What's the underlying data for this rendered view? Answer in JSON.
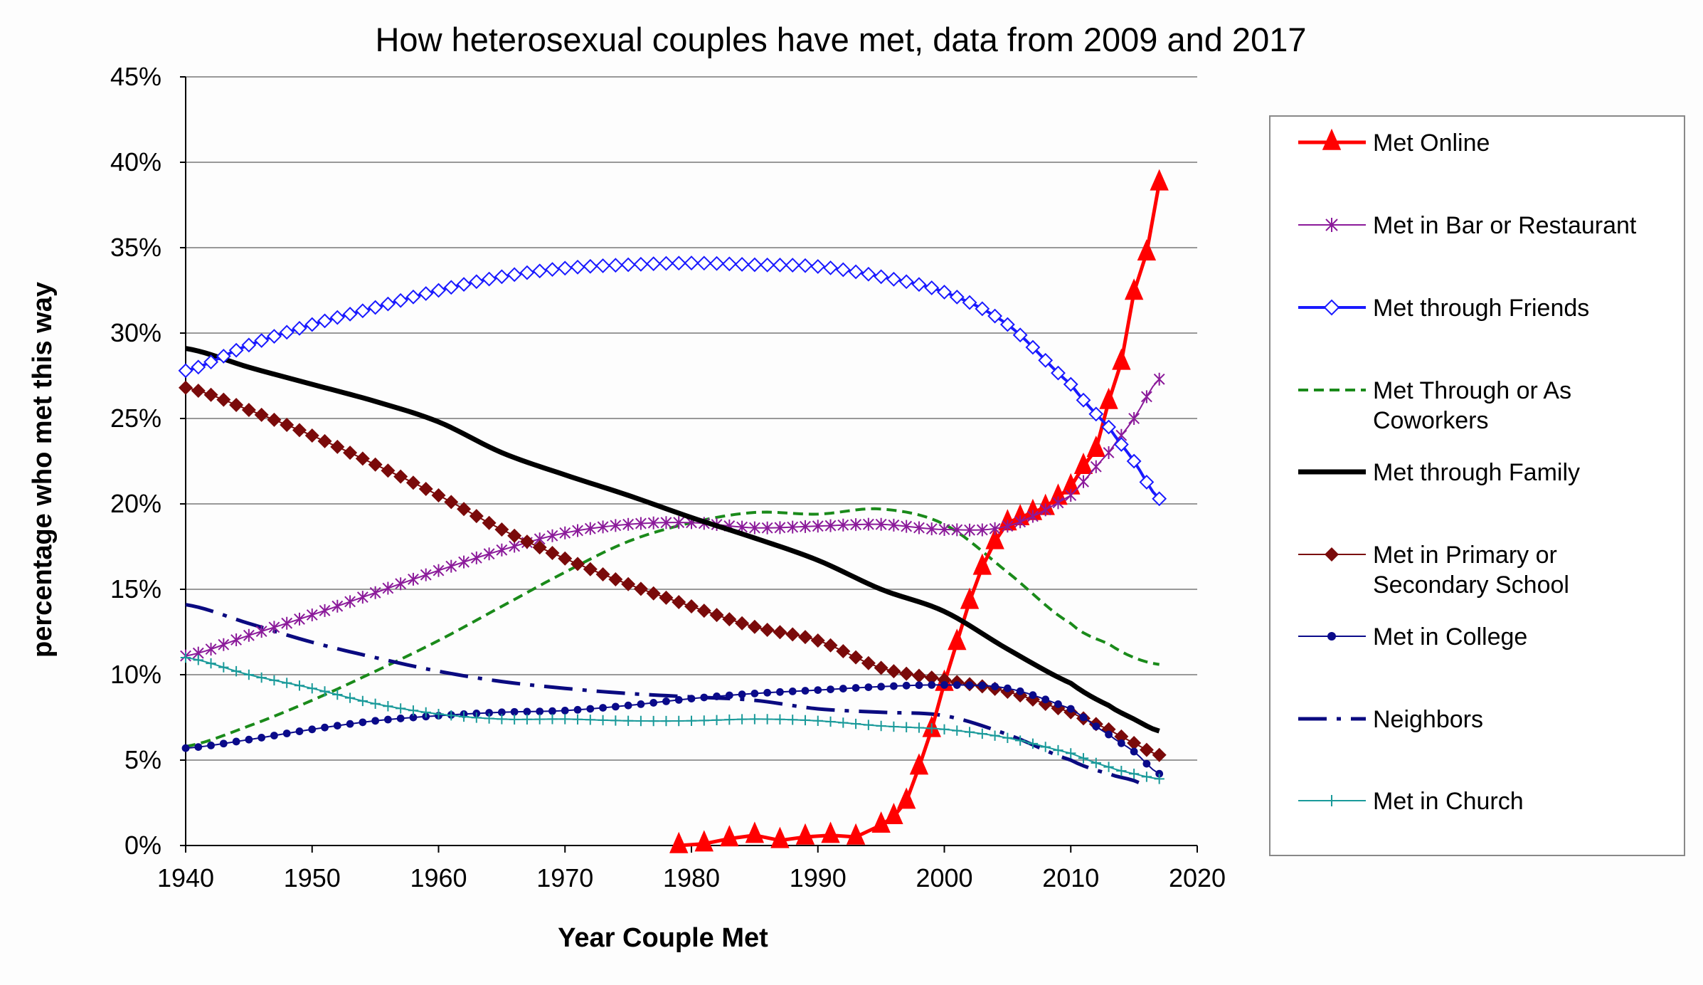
{
  "chart_data": {
    "type": "line",
    "title": "How heterosexual couples have met, data from 2009 and 2017",
    "xlabel": "Year Couple Met",
    "ylabel": "percentage who met this way",
    "xlim": [
      1940,
      2020
    ],
    "ylim": [
      0,
      45
    ],
    "x_ticks": [
      "1940",
      "1950",
      "1960",
      "1970",
      "1980",
      "1990",
      "2000",
      "2010",
      "2020"
    ],
    "y_ticks": [
      "0%",
      "5%",
      "10%",
      "15%",
      "20%",
      "25%",
      "30%",
      "35%",
      "40%",
      "45%"
    ],
    "grid": "horizontal",
    "legend_position": "right",
    "x": [
      1940,
      1945,
      1950,
      1955,
      1960,
      1965,
      1970,
      1975,
      1980,
      1985,
      1990,
      1995,
      2000,
      2005,
      2010,
      2013,
      2015,
      2017
    ],
    "series": [
      {
        "name": "Met Online",
        "color": "#ff0000",
        "marker": "triangle",
        "style": "solid",
        "width": 5,
        "x": [
          1979,
          1981,
          1983,
          1985,
          1987,
          1989,
          1991,
          1993,
          1995,
          1996,
          1997,
          1998,
          1999,
          2000,
          2001,
          2002,
          2003,
          2004,
          2005,
          2006,
          2007,
          2008,
          2009,
          2010,
          2011,
          2012,
          2013,
          2014,
          2015,
          2016,
          2017
        ],
        "values": [
          0,
          0.1,
          0.4,
          0.6,
          0.3,
          0.5,
          0.6,
          0.5,
          1.2,
          1.7,
          2.6,
          4.6,
          6.8,
          9.5,
          11.9,
          14.3,
          16.3,
          17.8,
          18.9,
          19.2,
          19.5,
          19.8,
          20.4,
          21.0,
          22.2,
          23.2,
          26.0,
          28.3,
          32.4,
          34.7,
          38.8
        ]
      },
      {
        "name": "Met in Bar or Restaurant",
        "color": "#8b1a9a",
        "marker": "star",
        "style": "solid",
        "width": 2,
        "values": [
          11.1,
          12.3,
          13.5,
          14.8,
          16.1,
          17.3,
          18.3,
          18.8,
          18.9,
          18.6,
          18.7,
          18.8,
          18.5,
          18.7,
          20.5,
          23.0,
          25.0,
          27.3
        ]
      },
      {
        "name": "Met through Friends",
        "color": "#1a1aff",
        "marker": "diamond-open",
        "style": "solid",
        "width": 4,
        "values": [
          27.8,
          29.3,
          30.5,
          31.5,
          32.5,
          33.3,
          33.8,
          34.0,
          34.1,
          34.0,
          33.9,
          33.3,
          32.4,
          30.5,
          27.0,
          24.5,
          22.5,
          20.3
        ]
      },
      {
        "name": "Met Through or As Coworkers",
        "color": "#1a8a1a",
        "marker": "none",
        "style": "dashed",
        "width": 4,
        "values": [
          5.8,
          7.0,
          8.5,
          10.2,
          12.0,
          14.0,
          16.0,
          17.8,
          18.9,
          19.5,
          19.4,
          19.7,
          18.8,
          16.0,
          13.0,
          11.8,
          11.0,
          10.6
        ]
      },
      {
        "name": "Met through Family",
        "color": "#000000",
        "marker": "none",
        "style": "solid",
        "width": 7,
        "values": [
          29.1,
          28.0,
          27.0,
          26.0,
          24.8,
          23.0,
          21.7,
          20.5,
          19.2,
          18.0,
          16.7,
          15.0,
          13.7,
          11.5,
          9.5,
          8.2,
          7.4,
          6.7
        ]
      },
      {
        "name": "Met in Primary or Secondary School",
        "color": "#7a0a0a",
        "marker": "diamond",
        "style": "solid",
        "width": 2,
        "values": [
          26.8,
          25.5,
          24.0,
          22.3,
          20.5,
          18.5,
          16.8,
          15.3,
          14.0,
          12.8,
          12.0,
          10.4,
          9.7,
          9.0,
          7.8,
          6.8,
          6.0,
          5.3
        ]
      },
      {
        "name": "Met in College",
        "color": "#0a0a8a",
        "marker": "dot",
        "style": "solid",
        "width": 2,
        "values": [
          5.7,
          6.2,
          6.8,
          7.3,
          7.6,
          7.8,
          7.9,
          8.2,
          8.6,
          8.9,
          9.1,
          9.3,
          9.4,
          9.2,
          8.0,
          6.5,
          5.5,
          4.2
        ]
      },
      {
        "name": "Neighbors",
        "color": "#0a0a80",
        "marker": "none",
        "style": "dashdot",
        "width": 5,
        "values": [
          14.1,
          13.0,
          11.9,
          11.0,
          10.2,
          9.6,
          9.2,
          8.9,
          8.7,
          8.5,
          8.0,
          7.8,
          7.6,
          6.5,
          5.0,
          4.2,
          3.8,
          3.2
        ]
      },
      {
        "name": "Met in Church",
        "color": "#1a9a9a",
        "marker": "plus",
        "style": "solid",
        "width": 2,
        "values": [
          11.0,
          10.0,
          9.2,
          8.3,
          7.7,
          7.4,
          7.4,
          7.3,
          7.3,
          7.4,
          7.3,
          7.0,
          6.8,
          6.3,
          5.4,
          4.6,
          4.2,
          3.9
        ]
      }
    ],
    "legend_lines": [
      [
        "Met Online"
      ],
      [
        "Met in Bar or Restaurant"
      ],
      [
        "Met through Friends"
      ],
      [
        "Met Through or As",
        "Coworkers"
      ],
      [
        "Met through Family"
      ],
      [
        "Met in Primary or",
        "Secondary School"
      ],
      [
        "Met in College"
      ],
      [
        "Neighbors"
      ],
      [
        "Met in Church"
      ]
    ]
  }
}
